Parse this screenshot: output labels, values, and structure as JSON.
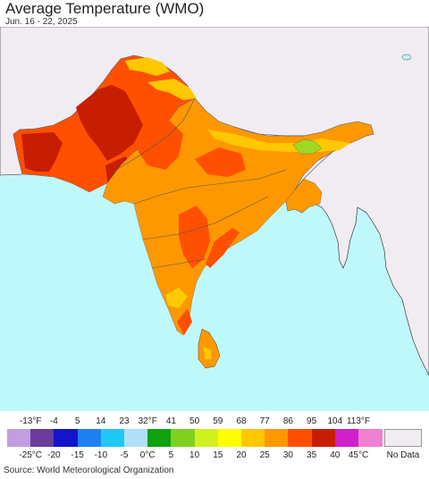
{
  "header": {
    "title": "Average Temperature (WMO)",
    "subtitle": "Jun. 16 - 22, 2025"
  },
  "legend": {
    "fahrenheit_labels": [
      "-13°F",
      "-4",
      "5",
      "14",
      "23",
      "32°F",
      "41",
      "50",
      "59",
      "68",
      "77",
      "86",
      "95",
      "104",
      "113°F"
    ],
    "celsius_labels": [
      "-25°C",
      "-20",
      "-15",
      "-10",
      "-5",
      "0°C",
      "5",
      "10",
      "15",
      "20",
      "25",
      "30",
      "35",
      "40",
      "45°C"
    ],
    "colors": [
      "#c09ee0",
      "#6a3c9c",
      "#1414c8",
      "#2080f0",
      "#20c8f8",
      "#b0e0f8",
      "#10a010",
      "#80d020",
      "#d0f020",
      "#ffff00",
      "#ffc800",
      "#ff9800",
      "#ff5000",
      "#c81e00",
      "#d020c8",
      "#f080d0"
    ],
    "no_data_label": "No Data",
    "no_data_color": "#f0ecf2"
  },
  "map": {
    "ocean_color": "#bff8fb",
    "no_data_land_color": "#f0ecf2"
  },
  "footer": {
    "source": "Source: World Meteorological Organization"
  }
}
